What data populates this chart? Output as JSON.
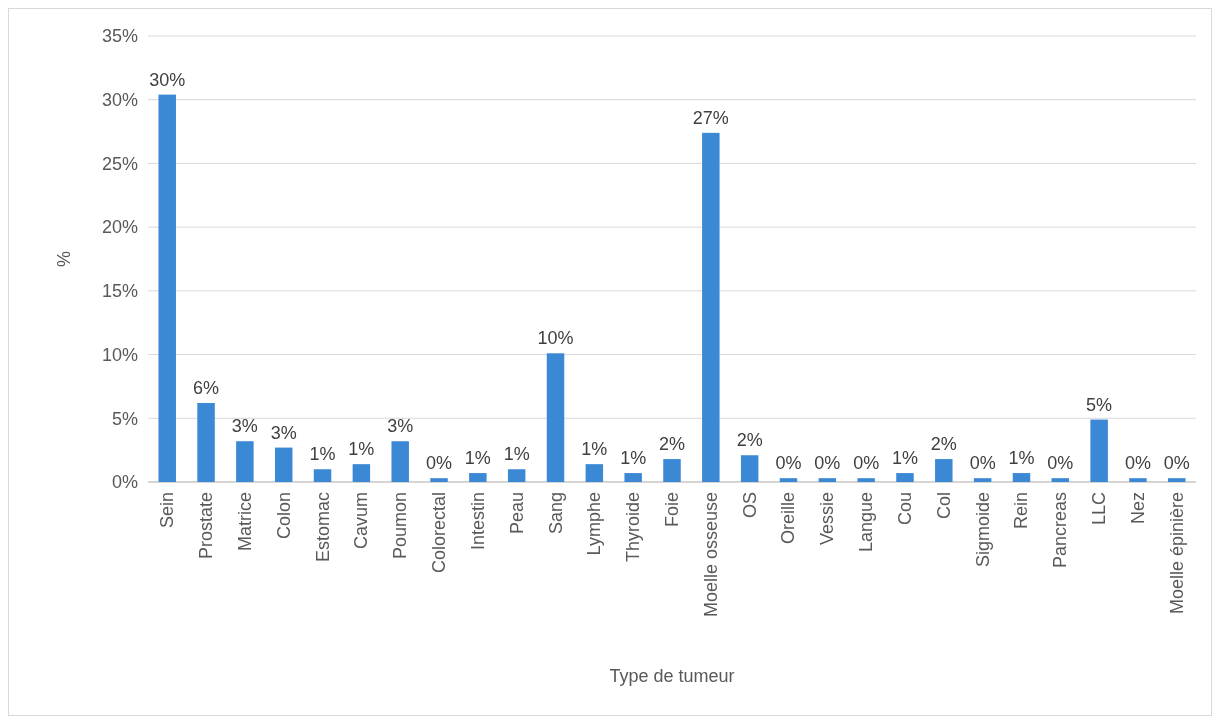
{
  "chart_data": {
    "type": "bar",
    "xlabel": "Type de tumeur",
    "ylabel": "%",
    "categories": [
      "Sein",
      "Prostate",
      "Matrice",
      "Colon",
      "Estomac",
      "Cavum",
      "Poumon",
      "Colorectal",
      "Intestin",
      "Peau",
      "Sang",
      "Lymphe",
      "Thyroide",
      "Foie",
      "Moelle osseuse",
      "OS",
      "Oreille",
      "Vessie",
      "Langue",
      "Cou",
      "Col",
      "Sigmoide",
      "Rein",
      "Pancreas",
      "LLC",
      "Nez",
      "Moelle épinière"
    ],
    "values": [
      30.4,
      6.2,
      3.2,
      2.7,
      1.0,
      1.4,
      3.2,
      0.3,
      0.7,
      1.0,
      10.1,
      1.4,
      0.7,
      1.8,
      27.4,
      2.1,
      0.3,
      0.3,
      0.3,
      0.7,
      1.8,
      0.3,
      0.7,
      0.3,
      4.9,
      0.3,
      0.3
    ],
    "value_labels": [
      "30%",
      "6%",
      "3%",
      "3%",
      "1%",
      "1%",
      "3%",
      "0%",
      "1%",
      "1%",
      "10%",
      "1%",
      "1%",
      "2%",
      "27%",
      "2%",
      "0%",
      "0%",
      "0%",
      "1%",
      "2%",
      "0%",
      "1%",
      "0%",
      "5%",
      "0%",
      "0%"
    ],
    "color": "#3b88d4",
    "ylim": [
      0,
      35
    ],
    "yticks": [
      {
        "value": 0,
        "label": "0%"
      },
      {
        "value": 5,
        "label": "5%"
      },
      {
        "value": 10,
        "label": "10%"
      },
      {
        "value": 15,
        "label": "15%"
      },
      {
        "value": 20,
        "label": "20%"
      },
      {
        "value": 25,
        "label": "25%"
      },
      {
        "value": 30,
        "label": "30%"
      },
      {
        "value": 35,
        "label": "35%"
      }
    ],
    "grid": "y"
  }
}
